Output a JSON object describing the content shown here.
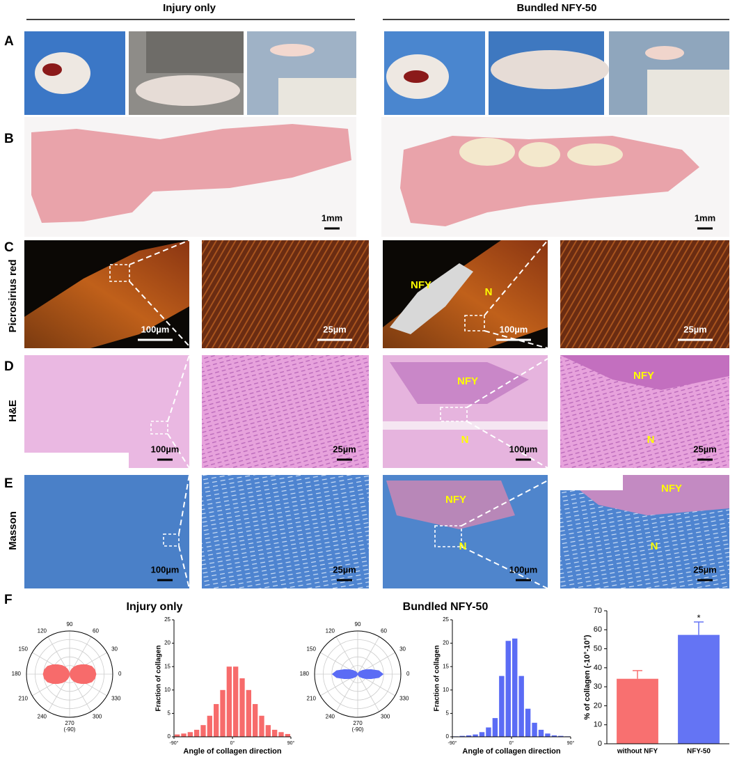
{
  "header": {
    "left": "Injury only",
    "right": "Bundled NFY-50"
  },
  "panel_labels": [
    "A",
    "B",
    "C",
    "D",
    "E",
    "F"
  ],
  "row_labels": [
    "Picrosirius red",
    "H&E",
    "Masson"
  ],
  "scale_bars": {
    "B": [
      "1mm",
      "1mm"
    ],
    "C": [
      "100µm",
      "25µm",
      "100µm",
      "25µm"
    ],
    "D": [
      "100µm",
      "25µm",
      "100µm",
      "25µm"
    ],
    "E": [
      "100µm",
      "25µm",
      "100µm",
      "25µm"
    ]
  },
  "tissue_labels": {
    "C": [
      "NFY",
      "N"
    ],
    "D": [
      "NFY",
      "N",
      "NFY",
      "N"
    ],
    "E": [
      "NFY",
      "N",
      "NFY",
      "N"
    ]
  },
  "chart_data": [
    {
      "type": "polar",
      "title": "Injury only",
      "color": "#f76b6b",
      "thetaticks": [
        0,
        30,
        60,
        90,
        120,
        150,
        180,
        210,
        240,
        270,
        300,
        330
      ],
      "theta_note": "(-90)",
      "rlim": [
        0,
        1
      ],
      "theta": [
        -90,
        -80,
        -70,
        -60,
        -50,
        -40,
        -30,
        -20,
        -10,
        0,
        10,
        20,
        30,
        40,
        50,
        60,
        70,
        80,
        90
      ],
      "r": [
        0.02,
        0.07,
        0.13,
        0.2,
        0.27,
        0.35,
        0.45,
        0.55,
        0.6,
        0.62,
        0.6,
        0.55,
        0.45,
        0.35,
        0.27,
        0.2,
        0.13,
        0.07,
        0.02
      ]
    },
    {
      "type": "histogram",
      "color": "#f76b6b",
      "ylabel": "Fraction of collagen",
      "xlabel": "Angle of collagen direction",
      "bins": [
        -90,
        -80,
        -70,
        -60,
        -50,
        -40,
        -30,
        -20,
        -10,
        0,
        10,
        20,
        30,
        40,
        50,
        60,
        70,
        80,
        90
      ],
      "values": [
        0.5,
        0.7,
        1,
        1.5,
        2.5,
        4.5,
        7,
        10,
        15,
        15,
        12.5,
        10,
        7,
        4.5,
        2.5,
        1.5,
        1,
        0.6
      ],
      "xlim": [
        -90,
        90
      ],
      "xticks": [
        {
          "value": -90,
          "label": "-90°"
        },
        {
          "value": 0,
          "label": "0°"
        },
        {
          "value": 90,
          "label": "90°"
        }
      ],
      "ylim": [
        0,
        25
      ],
      "yticks": [
        0,
        5,
        10,
        15,
        20,
        25
      ]
    },
    {
      "type": "polar",
      "title": "Bundled NFY-50",
      "color": "#5b6cf5",
      "thetaticks": [
        0,
        30,
        60,
        90,
        120,
        150,
        180,
        210,
        240,
        270,
        300,
        330
      ],
      "theta_note": "(-90)",
      "rlim": [
        0,
        1
      ],
      "theta": [
        -90,
        -80,
        -70,
        -60,
        -50,
        -40,
        -30,
        -20,
        -10,
        0,
        10,
        20,
        30,
        40,
        50,
        60,
        70,
        80,
        90
      ],
      "r": [
        0.01,
        0.02,
        0.04,
        0.07,
        0.1,
        0.15,
        0.22,
        0.33,
        0.5,
        0.6,
        0.5,
        0.33,
        0.22,
        0.15,
        0.1,
        0.07,
        0.04,
        0.02,
        0.01
      ]
    },
    {
      "type": "histogram",
      "color": "#5b6cf5",
      "ylabel": "Fraction of collagen",
      "xlabel": "Angle of collagen direction",
      "bins": [
        -90,
        -80,
        -70,
        -60,
        -50,
        -40,
        -30,
        -20,
        -10,
        0,
        10,
        20,
        30,
        40,
        50,
        60,
        70,
        80,
        90
      ],
      "values": [
        0.1,
        0.2,
        0.3,
        0.5,
        1,
        2,
        4,
        13,
        20.5,
        21,
        13,
        6,
        3,
        1.5,
        0.7,
        0.3,
        0.2,
        0.1
      ],
      "xlim": [
        -90,
        90
      ],
      "xticks": [
        {
          "value": -90,
          "label": "-90°"
        },
        {
          "value": 0,
          "label": "0°"
        },
        {
          "value": 90,
          "label": "90°"
        }
      ],
      "ylim": [
        0,
        25
      ],
      "yticks": [
        0,
        5,
        10,
        15,
        20,
        25
      ]
    },
    {
      "type": "bar",
      "ylabel": "% of collagen (-10°-10°)",
      "categories": [
        "without NFY",
        "NFY-50"
      ],
      "values": [
        34.2,
        57.3
      ],
      "errors": [
        4.3,
        6.8
      ],
      "colors": [
        "#f87070",
        "#6474f4"
      ],
      "ylim": [
        0,
        70
      ],
      "yticks": [
        0,
        10,
        20,
        30,
        40,
        50,
        60,
        70
      ],
      "annotations": [
        {
          "category": "NFY-50",
          "text": "*"
        }
      ]
    }
  ]
}
